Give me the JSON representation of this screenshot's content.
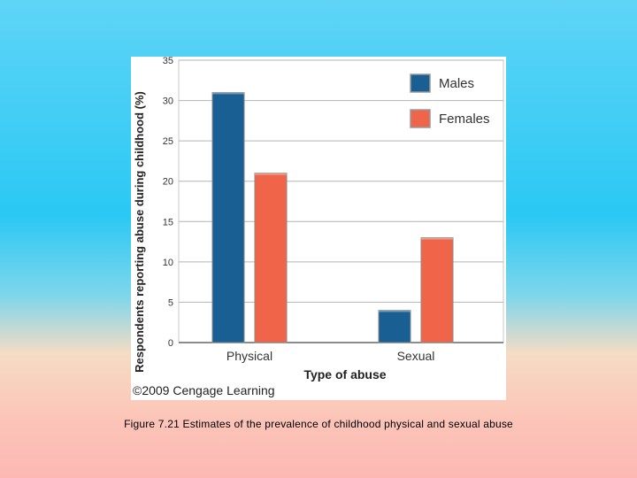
{
  "caption": "Figure 7.21 Estimates of the prevalence of childhood physical and sexual abuse",
  "copyright": "©2009 Cengage Learning",
  "chart_data": {
    "type": "bar",
    "categories": [
      "Physical",
      "Sexual"
    ],
    "series": [
      {
        "name": "Males",
        "values": [
          31,
          4
        ],
        "color": "#1a5f94"
      },
      {
        "name": "Females",
        "values": [
          21,
          13
        ],
        "color": "#f0644a"
      }
    ],
    "xlabel": "Type of abuse",
    "ylabel": "Respondents reporting abuse during childhood (%)",
    "ylim": [
      0,
      35
    ],
    "yticks": [
      "0",
      "5",
      "10",
      "15",
      "20",
      "25",
      "30",
      "35"
    ],
    "grid": true,
    "legend": "top-right"
  }
}
